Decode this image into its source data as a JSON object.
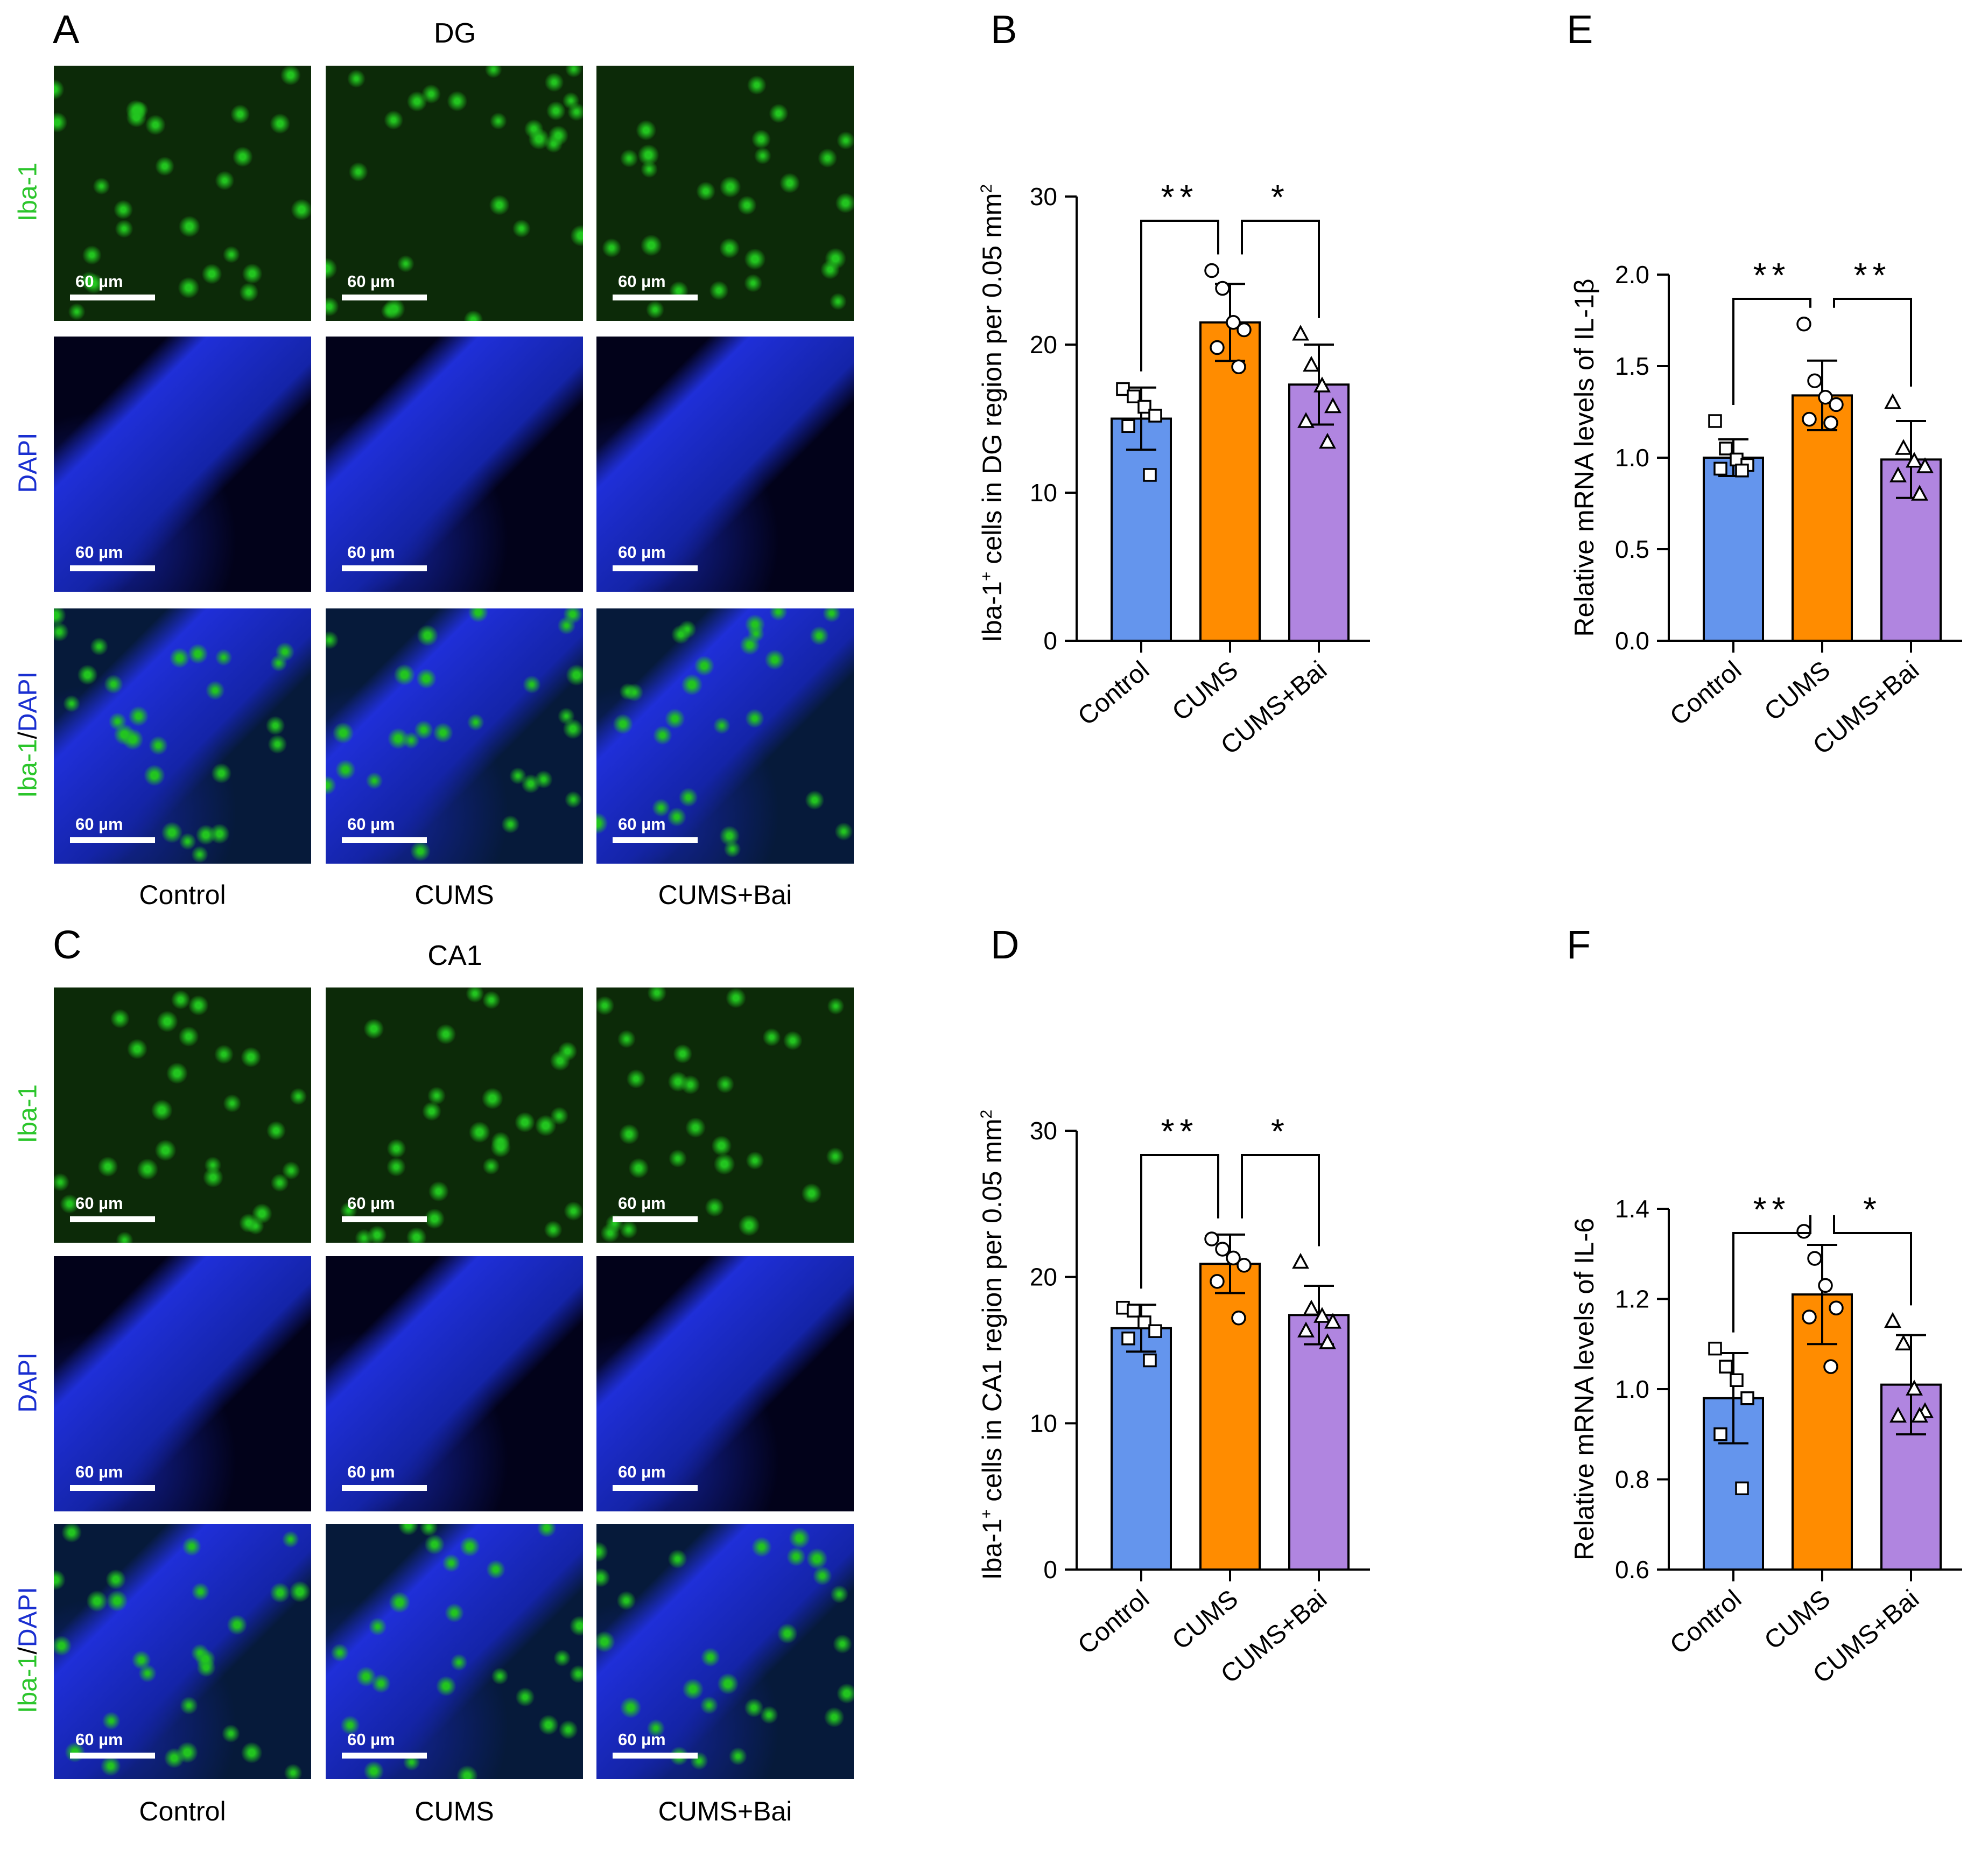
{
  "panels": {
    "A": {
      "letter": "A",
      "region_title": "DG"
    },
    "B": {
      "letter": "B"
    },
    "C": {
      "letter": "C",
      "region_title": "CA1"
    },
    "D": {
      "letter": "D"
    },
    "E": {
      "letter": "E"
    },
    "F": {
      "letter": "F"
    }
  },
  "micrographs": {
    "scale_label": "60 µm",
    "row_labels": {
      "iba": "Iba-1",
      "dapi": "DAPI",
      "merge_green": "Iba-1",
      "merge_sep": "/",
      "merge_blue": "DAPI"
    },
    "columns": [
      "Control",
      "CUMS",
      "CUMS+Bai"
    ],
    "colors": {
      "iba_green": "#22c51f",
      "dapi_blue": "#1f2fd8",
      "label_green": "#2bc52b",
      "label_blue": "#1a2fd0"
    }
  },
  "bar_colors": {
    "Control": "#6495ed",
    "CUMS": "#ff8c00",
    "CUMS+Bai": "#b085e0"
  },
  "chart_data": [
    {
      "id": "B",
      "type": "bar",
      "title": "",
      "ylabel_pre": "Iba-1",
      "ylabel_sup": "+",
      "ylabel_mid": " cells in DG region per 0.05 mm",
      "ylabel_sup2": "2",
      "categories": [
        "Control",
        "CUMS",
        "CUMS+Bai"
      ],
      "values": [
        15.0,
        21.5,
        17.3
      ],
      "errors": [
        2.1,
        2.6,
        2.7
      ],
      "points": [
        [
          17.0,
          16.5,
          15.8,
          15.2,
          14.5,
          11.2
        ],
        [
          25.0,
          23.8,
          21.5,
          21.0,
          19.8,
          18.5
        ],
        [
          20.7,
          18.6,
          17.2,
          15.8,
          14.8,
          13.4
        ]
      ],
      "markers": [
        "square",
        "circle",
        "triangle"
      ],
      "ylim": [
        0,
        30
      ],
      "yticks": [
        "0",
        "10",
        "20",
        "30"
      ],
      "significance": [
        {
          "from": 0,
          "to": 1,
          "label": "**"
        },
        {
          "from": 1,
          "to": 2,
          "label": "*"
        }
      ]
    },
    {
      "id": "D",
      "type": "bar",
      "title": "",
      "ylabel_pre": "Iba-1",
      "ylabel_sup": "+",
      "ylabel_mid": " cells in CA1 region per 0.05 mm",
      "ylabel_sup2": "2",
      "categories": [
        "Control",
        "CUMS",
        "CUMS+Bai"
      ],
      "values": [
        16.5,
        20.9,
        17.4
      ],
      "errors": [
        1.6,
        2.0,
        2.0
      ],
      "points": [
        [
          17.9,
          17.7,
          16.9,
          16.3,
          15.8,
          14.3
        ],
        [
          22.6,
          21.9,
          21.3,
          20.8,
          19.7,
          17.2
        ],
        [
          21.0,
          17.8,
          17.3,
          16.9,
          16.3,
          15.5
        ]
      ],
      "markers": [
        "square",
        "circle",
        "triangle"
      ],
      "ylim": [
        0,
        30
      ],
      "yticks": [
        "0",
        "10",
        "20",
        "30"
      ],
      "significance": [
        {
          "from": 0,
          "to": 1,
          "label": "**"
        },
        {
          "from": 1,
          "to": 2,
          "label": "*"
        }
      ]
    },
    {
      "id": "E",
      "type": "bar",
      "title": "",
      "ylabel_pre": "Relative mRNA levels of IL-1β",
      "ylabel_sup": "",
      "ylabel_mid": "",
      "ylabel_sup2": "",
      "categories": [
        "Control",
        "CUMS",
        "CUMS+Bai"
      ],
      "values": [
        1.0,
        1.34,
        0.99
      ],
      "errors": [
        0.1,
        0.19,
        0.21
      ],
      "points": [
        [
          1.2,
          1.05,
          0.99,
          0.96,
          0.94,
          0.93
        ],
        [
          1.73,
          1.42,
          1.33,
          1.29,
          1.21,
          1.19
        ],
        [
          1.3,
          1.05,
          0.98,
          0.95,
          0.9,
          0.8
        ]
      ],
      "markers": [
        "square",
        "circle",
        "triangle"
      ],
      "ylim": [
        0.0,
        2.0
      ],
      "yticks": [
        "0.0",
        "0.5",
        "1.0",
        "1.5",
        "2.0"
      ],
      "significance": [
        {
          "from": 0,
          "to": 1,
          "label": "**"
        },
        {
          "from": 1,
          "to": 2,
          "label": "**"
        }
      ]
    },
    {
      "id": "F",
      "type": "bar",
      "title": "",
      "ylabel_pre": "Relative mRNA levels of IL-6",
      "ylabel_sup": "",
      "ylabel_mid": "",
      "ylabel_sup2": "",
      "categories": [
        "Control",
        "CUMS",
        "CUMS+Bai"
      ],
      "values": [
        0.98,
        1.21,
        1.01
      ],
      "errors": [
        0.1,
        0.11,
        0.11
      ],
      "points": [
        [
          1.09,
          1.05,
          1.02,
          0.98,
          0.9,
          0.78
        ],
        [
          1.35,
          1.29,
          1.23,
          1.18,
          1.16,
          1.05
        ],
        [
          1.15,
          1.1,
          1.0,
          0.95,
          0.94,
          0.94
        ]
      ],
      "markers": [
        "square",
        "circle",
        "triangle"
      ],
      "ylim": [
        0.6,
        1.4
      ],
      "yticks": [
        "0.6",
        "0.8",
        "1.0",
        "1.2",
        "1.4"
      ],
      "significance": [
        {
          "from": 0,
          "to": 1,
          "label": "**"
        },
        {
          "from": 1,
          "to": 2,
          "label": "*"
        }
      ]
    }
  ]
}
